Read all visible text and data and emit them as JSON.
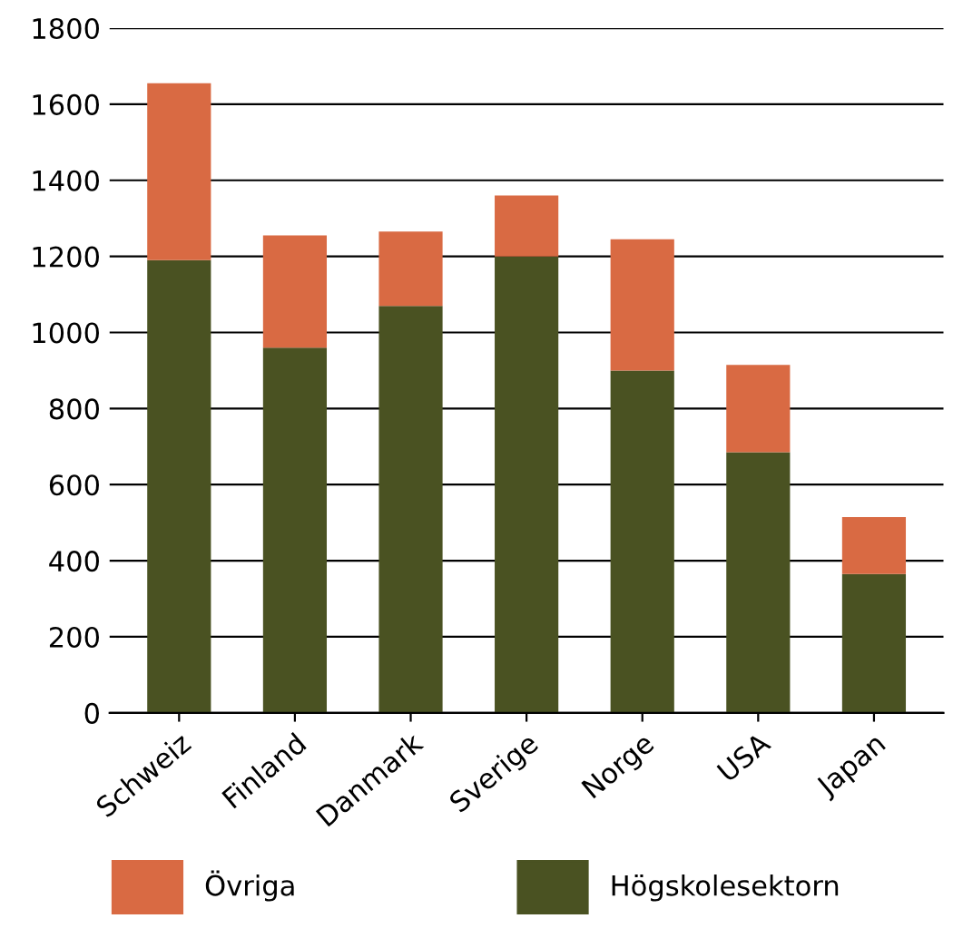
{
  "chart_data": {
    "type": "bar",
    "stacked": true,
    "categories": [
      "Schweiz",
      "Finland",
      "Danmark",
      "Sverige",
      "Norge",
      "USA",
      "Japan"
    ],
    "series": [
      {
        "name": "Högskolesektorn",
        "color": "#4a5222",
        "values": [
          1190,
          960,
          1070,
          1200,
          900,
          685,
          365
        ]
      },
      {
        "name": "Övriga",
        "color": "#d96a43",
        "values": [
          465,
          295,
          195,
          160,
          345,
          230,
          150
        ]
      }
    ],
    "ylim": [
      0,
      1800
    ],
    "yticks": [
      0,
      200,
      400,
      600,
      800,
      1000,
      1200,
      1400,
      1600,
      1800
    ],
    "grid": "y",
    "legend": "bottom"
  }
}
